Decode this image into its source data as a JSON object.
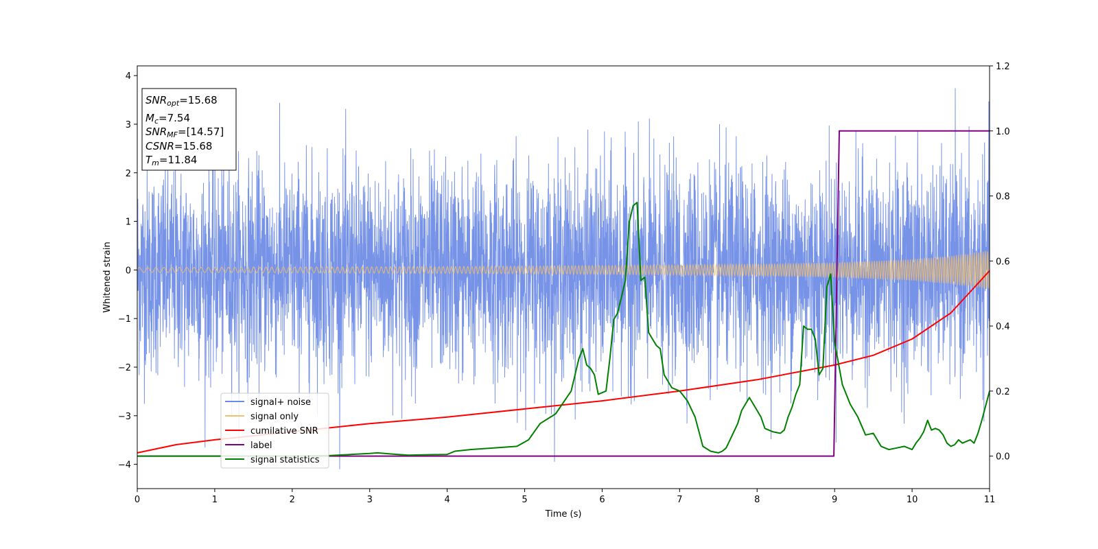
{
  "chart_data": {
    "type": "line",
    "xlabel": "Time (s)",
    "ylabel": "Whitened strain",
    "xlim": [
      0,
      11
    ],
    "ylim": [
      -4.5,
      4.2
    ],
    "y2lim": [
      -0.1,
      1.2
    ],
    "xticks": [
      "0",
      "1",
      "2",
      "3",
      "4",
      "5",
      "6",
      "7",
      "8",
      "9",
      "10",
      "11"
    ],
    "yticks": [
      "4",
      "3",
      "2",
      "1",
      "0",
      "−1",
      "−2",
      "−3",
      "−4"
    ],
    "y2ticks": [
      "1.2",
      "1.0",
      "0.8",
      "0.6",
      "0.4",
      "0.2",
      "0.0"
    ],
    "grid": false,
    "legend_position": "lower-left",
    "info_box": {
      "snr_opt": "15.68",
      "mc": "7.54",
      "snr_mf": "[14.57]",
      "csnr": "15.68",
      "tm": "11.84"
    },
    "series": [
      {
        "name": "signal+ noise",
        "axis": "left",
        "color": "#6b8ae6",
        "description_amplitude": [
          -4.1,
          3.85
        ]
      },
      {
        "name": "signal only",
        "axis": "left",
        "color": "#f4c06a",
        "envelope": {
          "t": [
            0,
            2,
            4,
            6,
            8,
            9,
            10,
            10.5,
            11
          ],
          "amp": [
            0.05,
            0.06,
            0.07,
            0.09,
            0.12,
            0.15,
            0.22,
            0.29,
            0.4
          ]
        }
      },
      {
        "name": "cumilative SNR",
        "axis": "right",
        "color": "#ff0000",
        "x": [
          0,
          0.5,
          1,
          2,
          3,
          4,
          5,
          6,
          7,
          8,
          9,
          9.5,
          10,
          10.5,
          11
        ],
        "y": [
          0.01,
          0.035,
          0.05,
          0.075,
          0.1,
          0.12,
          0.145,
          0.17,
          0.2,
          0.235,
          0.28,
          0.31,
          0.36,
          0.44,
          0.57
        ]
      },
      {
        "name": "label",
        "axis": "right",
        "color": "#800080",
        "x": [
          0,
          8.99,
          9.06,
          11
        ],
        "y": [
          0,
          0,
          1,
          1
        ]
      },
      {
        "name": "signal statistics",
        "axis": "right",
        "color": "#008000",
        "x": [
          0,
          1,
          2,
          2.5,
          3,
          3.1,
          3.3,
          3.5,
          3.7,
          4,
          4.1,
          4.3,
          4.6,
          4.9,
          5.05,
          5.2,
          5.3,
          5.4,
          5.5,
          5.6,
          5.7,
          5.75,
          5.8,
          5.85,
          5.9,
          5.95,
          6.05,
          6.1,
          6.15,
          6.2,
          6.25,
          6.3,
          6.35,
          6.4,
          6.45,
          6.5,
          6.55,
          6.6,
          6.65,
          6.7,
          6.75,
          6.8,
          6.9,
          7.0,
          7.1,
          7.2,
          7.3,
          7.4,
          7.5,
          7.55,
          7.6,
          7.65,
          7.7,
          7.75,
          7.8,
          7.85,
          7.9,
          8.0,
          8.05,
          8.1,
          8.2,
          8.3,
          8.35,
          8.4,
          8.45,
          8.5,
          8.55,
          8.6,
          8.65,
          8.7,
          8.75,
          8.8,
          8.85,
          8.9,
          8.95,
          9.0,
          9.1,
          9.2,
          9.3,
          9.4,
          9.5,
          9.6,
          9.7,
          9.8,
          9.9,
          10.0,
          10.05,
          10.1,
          10.15,
          10.2,
          10.25,
          10.3,
          10.35,
          10.4,
          10.45,
          10.5,
          10.55,
          10.6,
          10.65,
          10.7,
          10.75,
          10.8,
          10.85,
          10.9,
          11
        ],
        "y": [
          0,
          0,
          0,
          0.002,
          0.008,
          0.01,
          0.006,
          0.003,
          0.004,
          0.005,
          0.015,
          0.02,
          0.025,
          0.03,
          0.05,
          0.1,
          0.115,
          0.13,
          0.165,
          0.2,
          0.3,
          0.33,
          0.28,
          0.27,
          0.25,
          0.19,
          0.2,
          0.3,
          0.42,
          0.44,
          0.49,
          0.54,
          0.72,
          0.77,
          0.78,
          0.54,
          0.55,
          0.38,
          0.36,
          0.34,
          0.33,
          0.25,
          0.21,
          0.2,
          0.17,
          0.12,
          0.03,
          0.015,
          0.01,
          0.015,
          0.025,
          0.05,
          0.075,
          0.1,
          0.14,
          0.16,
          0.18,
          0.14,
          0.12,
          0.085,
          0.075,
          0.07,
          0.08,
          0.12,
          0.15,
          0.19,
          0.22,
          0.4,
          0.39,
          0.39,
          0.36,
          0.25,
          0.27,
          0.52,
          0.56,
          0.35,
          0.22,
          0.16,
          0.12,
          0.065,
          0.07,
          0.03,
          0.02,
          0.025,
          0.03,
          0.02,
          0.04,
          0.055,
          0.075,
          0.11,
          0.08,
          0.085,
          0.08,
          0.065,
          0.04,
          0.03,
          0.035,
          0.05,
          0.04,
          0.045,
          0.05,
          0.04,
          0.07,
          0.11,
          0.2
        ]
      }
    ]
  }
}
